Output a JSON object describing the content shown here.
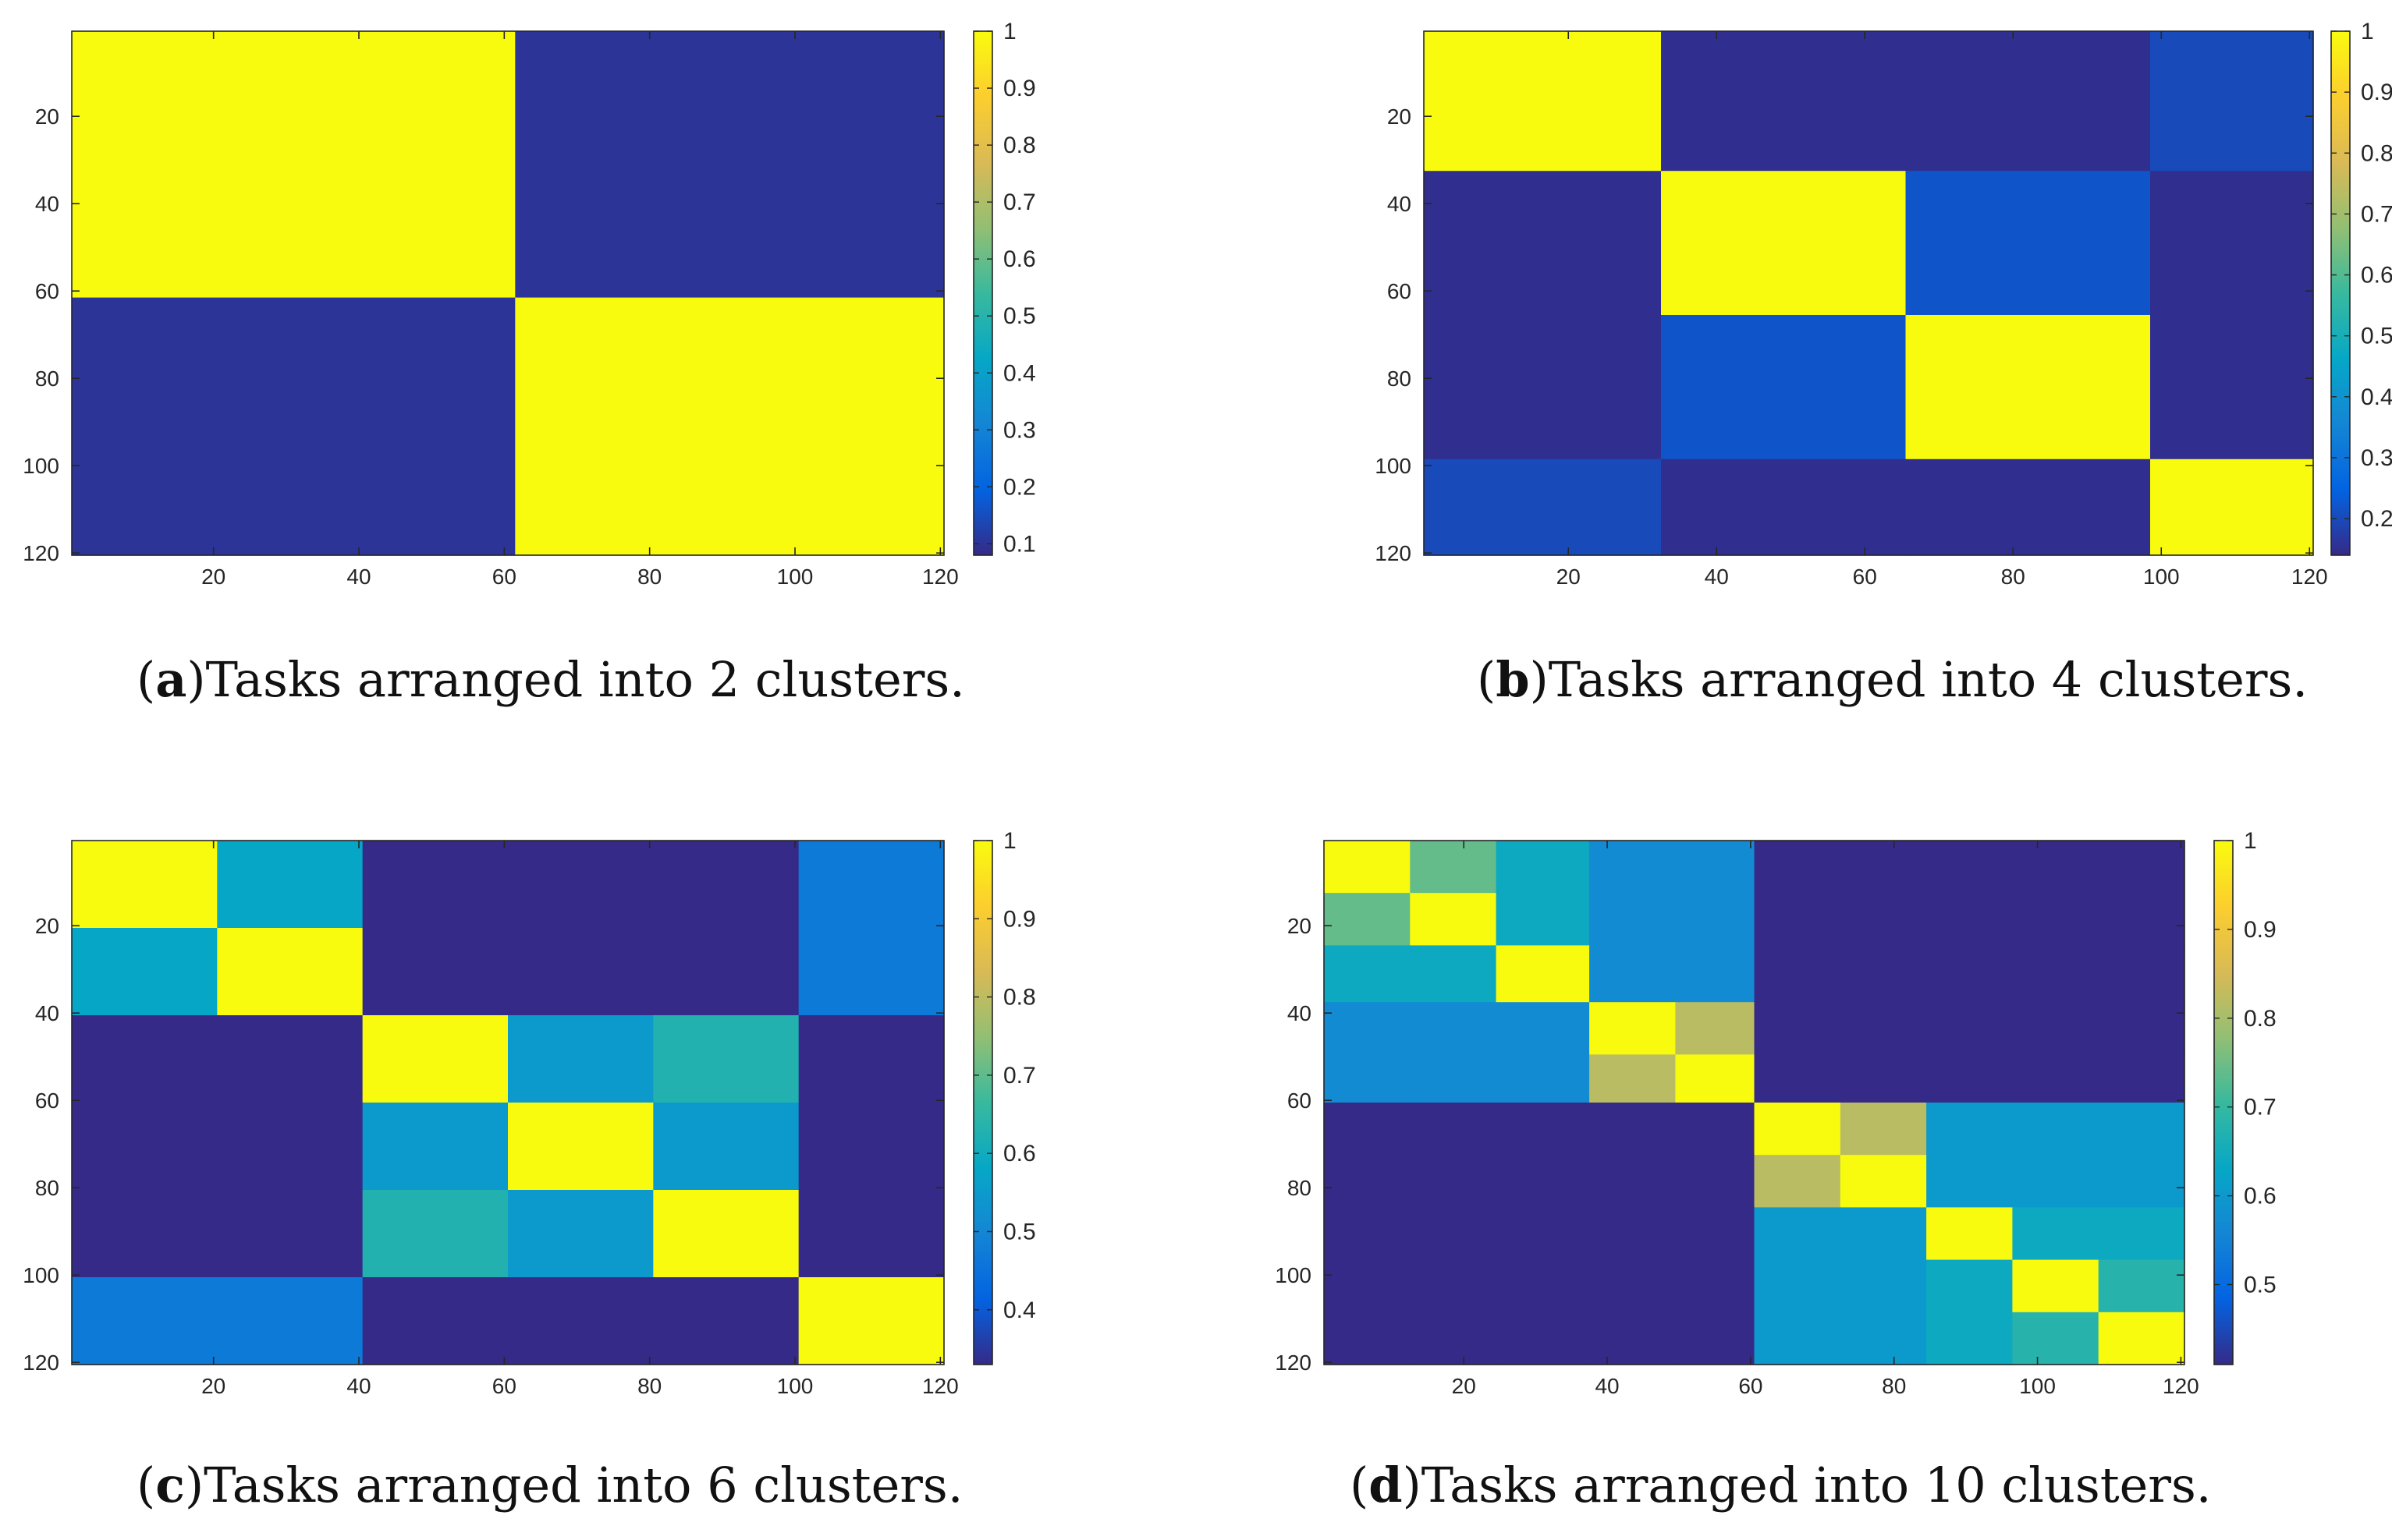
{
  "figure": {
    "colormap": {
      "name": "parula",
      "stops": [
        "#352a87",
        "#0363e1",
        "#1485d4",
        "#06a7c6",
        "#38b99e",
        "#92bf73",
        "#d9ba56",
        "#fcce2e",
        "#f9fb0e"
      ]
    }
  },
  "chart_data": [
    {
      "id": "a",
      "type": "heatmap",
      "caption_label": "a",
      "caption_text": "Tasks arranged into 2 clusters.",
      "x_ticks": [
        20,
        40,
        60,
        80,
        100,
        120
      ],
      "y_ticks": [
        20,
        40,
        60,
        80,
        100,
        120
      ],
      "xlim": [
        0.5,
        120.5
      ],
      "ylim": [
        0.5,
        120.5
      ],
      "clim": [
        0.08,
        1.0
      ],
      "colorbar_ticks": [
        0.1,
        0.2,
        0.3,
        0.4,
        0.5,
        0.6,
        0.7,
        0.8,
        0.9,
        1
      ],
      "colorbar_labels": [
        "0.1",
        "0.2",
        "0.3",
        "0.4",
        "0.5",
        "0.6",
        "0.7",
        "0.8",
        "0.9",
        "1"
      ],
      "boundaries": [
        0,
        61,
        120
      ],
      "values": [
        [
          1,
          0.1
        ],
        [
          0.1,
          1
        ]
      ]
    },
    {
      "id": "b",
      "type": "heatmap",
      "caption_label": "b",
      "caption_text": "Tasks arranged into 4 clusters.",
      "x_ticks": [
        20,
        40,
        60,
        80,
        100,
        120
      ],
      "y_ticks": [
        20,
        40,
        60,
        80,
        100,
        120
      ],
      "xlim": [
        0.5,
        120.5
      ],
      "ylim": [
        0.5,
        120.5
      ],
      "clim": [
        0.14,
        1.0
      ],
      "colorbar_ticks": [
        0.2,
        0.3,
        0.4,
        0.5,
        0.6,
        0.7,
        0.8,
        0.9,
        1
      ],
      "colorbar_labels": [
        "0.2",
        "0.3",
        "0.4",
        "0.5",
        "0.6",
        "0.7",
        "0.8",
        "0.9",
        "1"
      ],
      "boundaries": [
        0,
        32,
        65,
        98,
        120
      ],
      "values": [
        [
          1,
          0.15,
          0.15,
          0.2
        ],
        [
          0.15,
          1,
          0.22,
          0.15
        ],
        [
          0.15,
          0.22,
          1,
          0.15
        ],
        [
          0.2,
          0.15,
          0.15,
          1
        ]
      ]
    },
    {
      "id": "c",
      "type": "heatmap",
      "caption_label": "c",
      "caption_text": "Tasks arranged into 6 clusters.",
      "x_ticks": [
        20,
        40,
        60,
        80,
        100,
        120
      ],
      "y_ticks": [
        20,
        40,
        60,
        80,
        100,
        120
      ],
      "xlim": [
        0.5,
        120.5
      ],
      "ylim": [
        0.5,
        120.5
      ],
      "clim": [
        0.33,
        1.0
      ],
      "colorbar_ticks": [
        0.4,
        0.5,
        0.6,
        0.7,
        0.8,
        0.9,
        1
      ],
      "colorbar_labels": [
        "0.4",
        "0.5",
        "0.6",
        "0.7",
        "0.8",
        "0.9",
        "1"
      ],
      "boundaries": [
        0,
        20,
        40,
        60,
        80,
        100,
        120
      ],
      "values": [
        [
          1,
          0.58,
          0.33,
          0.33,
          0.33,
          0.47
        ],
        [
          0.58,
          1,
          0.33,
          0.33,
          0.33,
          0.47
        ],
        [
          0.33,
          0.33,
          1,
          0.55,
          0.63,
          0.33
        ],
        [
          0.33,
          0.33,
          0.55,
          1,
          0.55,
          0.33
        ],
        [
          0.33,
          0.33,
          0.63,
          0.55,
          1,
          0.33
        ],
        [
          0.47,
          0.47,
          0.33,
          0.33,
          0.33,
          1
        ]
      ]
    },
    {
      "id": "d",
      "type": "heatmap",
      "caption_label": "d",
      "caption_text": "Tasks arranged into 10 clusters.",
      "x_ticks": [
        20,
        40,
        60,
        80,
        100,
        120
      ],
      "y_ticks": [
        20,
        40,
        60,
        80,
        100,
        120
      ],
      "xlim": [
        0.5,
        120.5
      ],
      "ylim": [
        0.5,
        120.5
      ],
      "clim": [
        0.41,
        1.0
      ],
      "colorbar_ticks": [
        0.5,
        0.6,
        0.7,
        0.8,
        0.9,
        1
      ],
      "colorbar_labels": [
        "0.5",
        "0.6",
        "0.7",
        "0.8",
        "0.9",
        "1"
      ],
      "boundaries": [
        0,
        12,
        24,
        37,
        49,
        60,
        72,
        84,
        96,
        108,
        120
      ],
      "values": [
        [
          1,
          0.74,
          0.64,
          0.57,
          0.57,
          0.41,
          0.41,
          0.41,
          0.41,
          0.41
        ],
        [
          0.74,
          1,
          0.64,
          0.57,
          0.57,
          0.41,
          0.41,
          0.41,
          0.41,
          0.41
        ],
        [
          0.64,
          0.64,
          1,
          0.57,
          0.57,
          0.41,
          0.41,
          0.41,
          0.41,
          0.41
        ],
        [
          0.57,
          0.57,
          0.57,
          1,
          0.82,
          0.41,
          0.41,
          0.41,
          0.41,
          0.41
        ],
        [
          0.57,
          0.57,
          0.57,
          0.82,
          1,
          0.41,
          0.41,
          0.41,
          0.41,
          0.41
        ],
        [
          0.41,
          0.41,
          0.41,
          0.41,
          0.41,
          1,
          0.82,
          0.6,
          0.6,
          0.6
        ],
        [
          0.41,
          0.41,
          0.41,
          0.41,
          0.41,
          0.82,
          1,
          0.6,
          0.6,
          0.6
        ],
        [
          0.41,
          0.41,
          0.41,
          0.41,
          0.41,
          0.6,
          0.6,
          1,
          0.64,
          0.64
        ],
        [
          0.41,
          0.41,
          0.41,
          0.41,
          0.41,
          0.6,
          0.6,
          0.64,
          1,
          0.68
        ],
        [
          0.41,
          0.41,
          0.41,
          0.41,
          0.41,
          0.6,
          0.6,
          0.64,
          0.68,
          1
        ]
      ]
    }
  ]
}
